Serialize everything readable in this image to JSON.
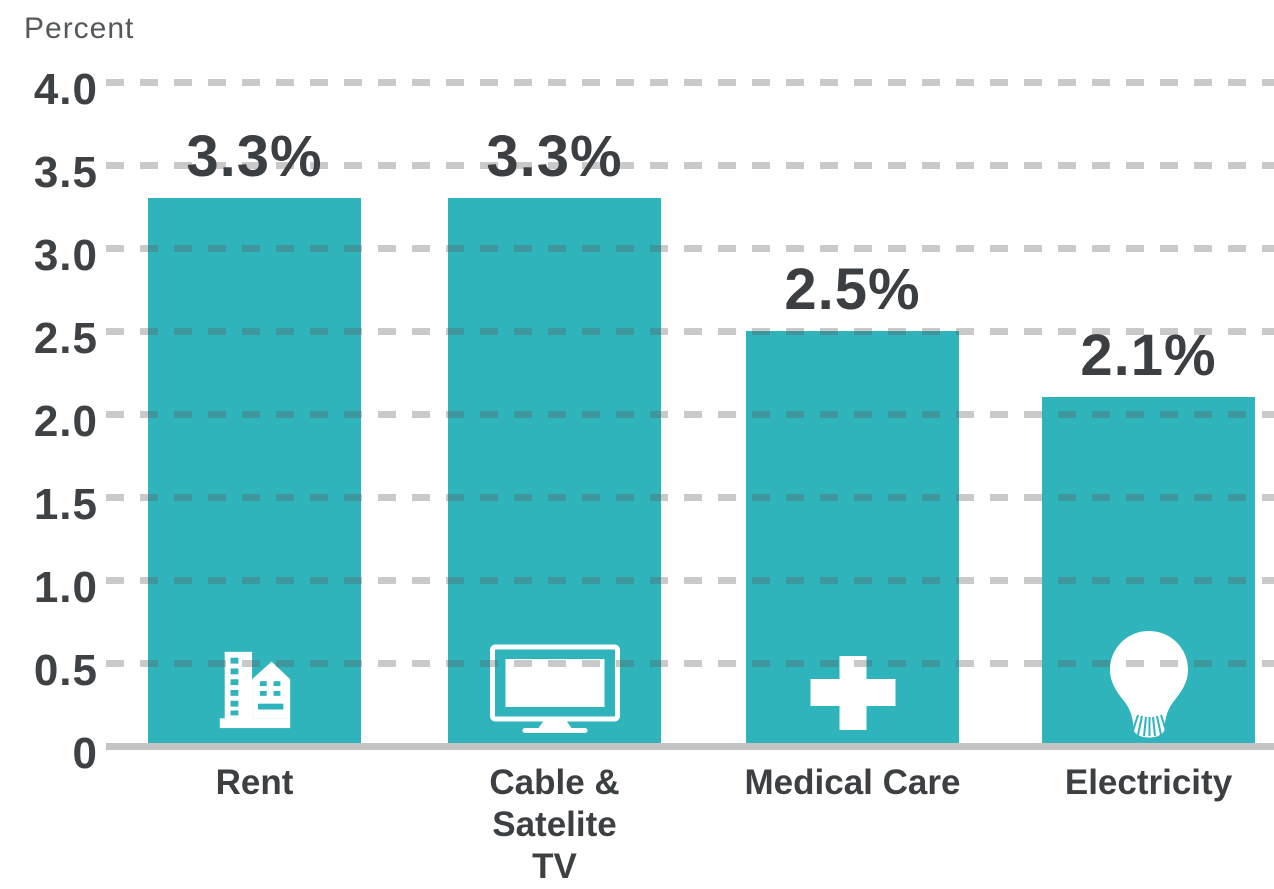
{
  "chart_data": {
    "type": "bar",
    "ylabel": "Percent",
    "ylim": [
      0,
      4.0
    ],
    "ytick_interval": 0.5,
    "yticks": [
      "4.0",
      "3.5",
      "3.0",
      "2.5",
      "2.0",
      "1.5",
      "1.0",
      "0.5",
      "0"
    ],
    "grid": "horizontal-dashed",
    "legend": "none",
    "categories": [
      "Rent",
      "Cable & Satelite TV",
      "Medical Care",
      "Electricity"
    ],
    "values": [
      3.3,
      3.3,
      2.5,
      2.1
    ],
    "bars": [
      {
        "category": "Rent",
        "label_display": "Rent",
        "value": 3.3,
        "value_label": "3.3%",
        "icon": "building-icon"
      },
      {
        "category": "Cable & Satelite TV",
        "label_display": "Cable &\nSatelite\nTV",
        "value": 3.3,
        "value_label": "3.3%",
        "icon": "tv-icon"
      },
      {
        "category": "Medical Care",
        "label_display": "Medical Care",
        "value": 2.5,
        "value_label": "2.5%",
        "icon": "medical-cross-icon"
      },
      {
        "category": "Electricity",
        "label_display": "Electricity",
        "value": 2.1,
        "value_label": "2.1%",
        "icon": "lightbulb-icon"
      }
    ],
    "colors": {
      "bar": "#2FB4BB",
      "grid_dash": "#C9C9C9",
      "baseline": "#C4C4C4",
      "value_text": "#3B3F42",
      "tick_text": "#3E4245",
      "category_text": "#3C4043",
      "axis_title_text": "#54585B",
      "icon": "#FFFFFF",
      "background": "#FFFFFF"
    }
  }
}
